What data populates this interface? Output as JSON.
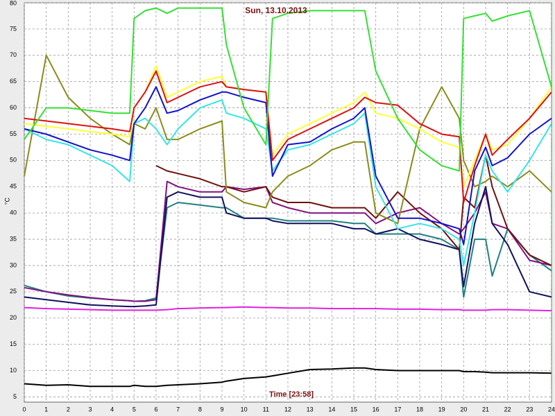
{
  "chart_data": {
    "type": "line",
    "title": "Sun, 13.10.2013",
    "x_label": "Time [23:58]",
    "y_label": "°C",
    "x": [
      0,
      1,
      2,
      3,
      4,
      4.8,
      5,
      5.5,
      6,
      6.5,
      7,
      8,
      9,
      9.2,
      10,
      11,
      11.3,
      12,
      13,
      14,
      15,
      15.5,
      16,
      17,
      18,
      19,
      19.8,
      20,
      20.5,
      21,
      21.3,
      22,
      23,
      24
    ],
    "xlim": [
      0,
      24
    ],
    "xticks": [
      0,
      1,
      2,
      3,
      4,
      5,
      6,
      7,
      8,
      9,
      10,
      11,
      12,
      13,
      14,
      15,
      16,
      17,
      18,
      19,
      20,
      21,
      22,
      23,
      24
    ],
    "ylim": [
      4,
      80
    ],
    "yticks": [
      5,
      10,
      15,
      20,
      25,
      30,
      35,
      40,
      45,
      50,
      55,
      60,
      65,
      70,
      75,
      80
    ],
    "grid": true,
    "series": [
      {
        "color": "#000000",
        "values": [
          7.5,
          7.2,
          7.3,
          7,
          7,
          7,
          7.2,
          7,
          7,
          7.2,
          7.3,
          7.5,
          7.8,
          8,
          8.5,
          8.8,
          9,
          9.5,
          10.2,
          10.3,
          10.5,
          10.5,
          10.2,
          10,
          10,
          10,
          10,
          9.8,
          9.8,
          9.7,
          9.6,
          9.6,
          9.6,
          9.5
        ]
      },
      {
        "color": "#e020e0",
        "values": [
          22,
          21.8,
          21.7,
          21.6,
          21.5,
          21.5,
          21.5,
          21.5,
          21.5,
          21.6,
          21.8,
          21.9,
          22,
          22,
          22.1,
          22,
          22,
          21.9,
          21.9,
          21.8,
          21.8,
          21.8,
          21.8,
          21.7,
          21.7,
          21.6,
          21.6,
          21.5,
          21.5,
          21.5,
          21.6,
          21.6,
          21.5,
          21.4
        ]
      },
      {
        "color": "#208080",
        "values": [
          26.2,
          25,
          24.2,
          23.8,
          23.5,
          23.3,
          23.2,
          23.3,
          23.8,
          41,
          42,
          41.5,
          41,
          41,
          39,
          39,
          39,
          38.5,
          38.5,
          38.5,
          38,
          38,
          36,
          36,
          36,
          35,
          33,
          24,
          35,
          35,
          28,
          37,
          32,
          29
        ]
      },
      {
        "color": "#801080",
        "values": [
          25.8,
          25,
          24.4,
          23.9,
          23.5,
          23.3,
          23.2,
          23.2,
          23.5,
          46,
          45,
          44,
          44,
          45,
          44.5,
          45,
          42,
          41,
          40,
          40,
          40,
          40,
          38,
          40,
          41,
          38,
          36,
          37,
          40,
          44,
          38,
          37,
          31,
          30
        ]
      },
      {
        "color": "#101060",
        "values": [
          24,
          23.5,
          23,
          22.5,
          22.3,
          22.2,
          22.2,
          22.3,
          22.5,
          43,
          44,
          43,
          43,
          40,
          39,
          39,
          38.5,
          38,
          38,
          38,
          37,
          37,
          36,
          37,
          35,
          34,
          33,
          26,
          38,
          45,
          38,
          34,
          25,
          24
        ]
      },
      {
        "color": "#701010",
        "values": [
          null,
          null,
          null,
          null,
          null,
          null,
          null,
          null,
          49,
          48,
          47.5,
          46.5,
          45,
          45,
          44,
          45,
          43,
          42,
          42,
          41,
          41,
          41,
          39,
          44,
          40,
          37,
          33,
          43,
          41,
          51,
          45,
          37,
          32,
          30
        ]
      },
      {
        "color": "#8b8b1a",
        "values": [
          47,
          70,
          62,
          58,
          55,
          53,
          57,
          56,
          60,
          54,
          54,
          56,
          57.5,
          44,
          42,
          41,
          44,
          47,
          49,
          52,
          53.5,
          53.5,
          40,
          38,
          56,
          64,
          58,
          50,
          45,
          46,
          47,
          45,
          48,
          44
        ]
      },
      {
        "color": "#33e6e6",
        "values": [
          56,
          54,
          53,
          51,
          49,
          46,
          57,
          58,
          56,
          53,
          56,
          60,
          61.5,
          59,
          58,
          56,
          48,
          52,
          53,
          55,
          57,
          59,
          45,
          37,
          38,
          37,
          35,
          30,
          40,
          51,
          48,
          44,
          50,
          57
        ]
      },
      {
        "color": "#1111cc",
        "values": [
          56,
          55,
          53.5,
          52,
          51,
          50,
          57,
          60,
          64,
          59,
          59.5,
          61.5,
          63,
          63,
          62,
          61,
          47,
          53,
          53.5,
          56,
          58,
          60,
          47,
          39,
          39,
          38,
          37,
          34,
          48,
          52.5,
          49,
          50.5,
          55,
          58
        ]
      },
      {
        "color": "#ffff33",
        "values": [
          57,
          56.5,
          56,
          55.5,
          55,
          54.5,
          60,
          63,
          68,
          62,
          63,
          65,
          66,
          64,
          63.5,
          63,
          51,
          55,
          57,
          59,
          61,
          63,
          59,
          58,
          56,
          53.5,
          52.5,
          45,
          50,
          55,
          52,
          53,
          58,
          64
        ]
      },
      {
        "color": "#dd1111",
        "values": [
          58,
          57.5,
          57,
          56.5,
          56,
          55.5,
          60,
          63,
          67,
          61,
          62,
          64,
          65,
          64,
          63.5,
          63,
          50,
          54,
          56,
          58,
          60,
          62,
          61,
          60.5,
          57,
          55,
          54.5,
          42,
          49,
          55,
          51,
          54,
          58,
          63
        ]
      },
      {
        "color": "#33e033",
        "values": [
          54,
          60,
          60,
          59.5,
          59,
          59,
          77,
          78.5,
          79,
          78,
          79,
          79,
          79,
          72,
          60,
          53,
          77,
          78,
          78.5,
          78.5,
          78.5,
          78.5,
          67,
          58,
          52,
          49,
          48,
          77,
          77.5,
          78,
          76.5,
          77.5,
          78.5,
          64
        ]
      }
    ]
  }
}
